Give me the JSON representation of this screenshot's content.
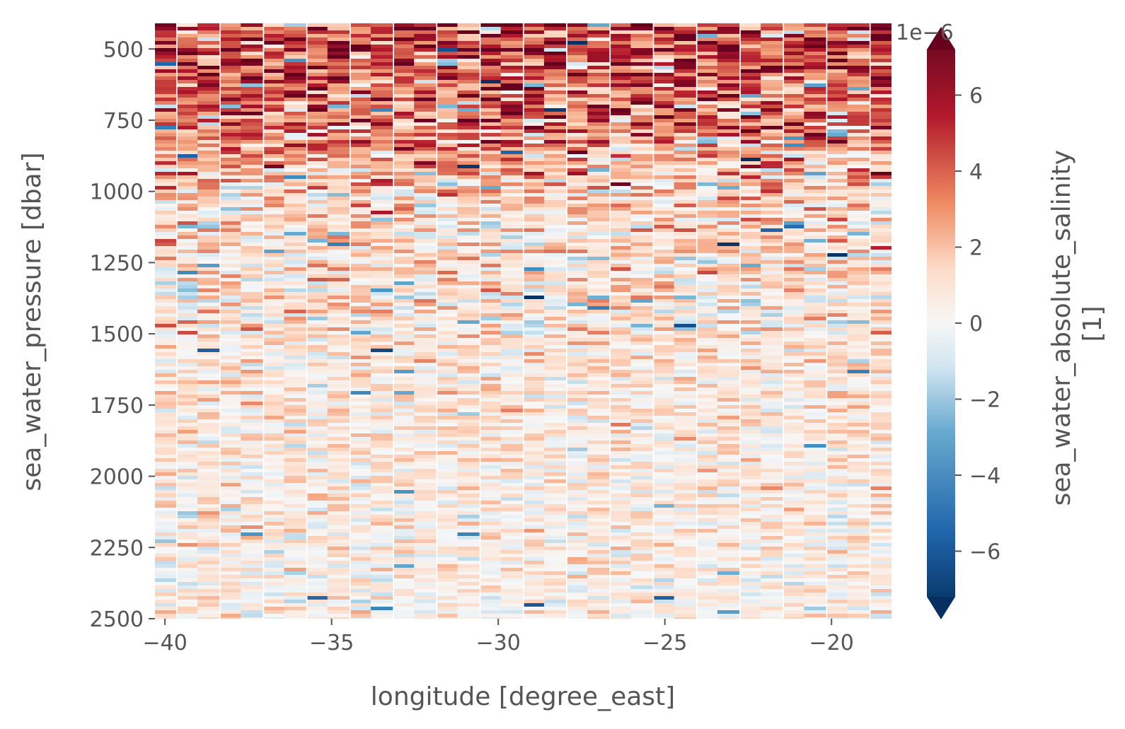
{
  "chart_data": {
    "type": "heatmap",
    "title": "",
    "xlabel": "longitude [degree_east]",
    "ylabel": "sea_water_pressure [dbar]",
    "xlim": [
      -40.3,
      -18.2
    ],
    "ylim": [
      2500,
      410
    ],
    "y_inverted": true,
    "x_ticks": [
      -40,
      -35,
      -30,
      -25,
      -20
    ],
    "x_tick_labels": [
      "−40",
      "−35",
      "−30",
      "−25",
      "−20"
    ],
    "y_ticks": [
      500,
      750,
      1000,
      1250,
      1500,
      1750,
      2000,
      2250,
      2500
    ],
    "y_tick_labels": [
      "500",
      "750",
      "1000",
      "1250",
      "1500",
      "1750",
      "2000",
      "2250",
      "2500"
    ],
    "grid": false,
    "colormap": "RdBu_r",
    "colorbar": {
      "label_line1": "sea_water_absolute_salinity",
      "label_line2": "[1]",
      "offset_text": "1e−6",
      "vmin": -7.2,
      "vmax": 7.2,
      "extend": "both",
      "ticks": [
        -6,
        -4,
        -2,
        0,
        2,
        4,
        6
      ],
      "tick_labels": [
        "−6",
        "−4",
        "−2",
        "0",
        "2",
        "4",
        "6"
      ]
    },
    "profile_longitudes": [
      -40.0,
      -39.3,
      -38.7,
      -38.0,
      -37.4,
      -36.7,
      -36.1,
      -35.4,
      -34.8,
      -34.1,
      -33.5,
      -32.8,
      -32.2,
      -31.5,
      -30.9,
      -30.2,
      -29.6,
      -28.9,
      -28.3,
      -27.6,
      -27.0,
      -26.3,
      -25.7,
      -25.0,
      -24.4,
      -23.7,
      -23.1,
      -22.4,
      -21.8,
      -21.1,
      -20.5,
      -19.8,
      -19.2,
      -18.5
    ],
    "mean_anomaly_by_pressure": {
      "pressure": [
        410,
        500,
        600,
        700,
        800,
        900,
        1000,
        1100,
        1250,
        1500,
        1750,
        2000,
        2250,
        2500
      ],
      "value": [
        5.0,
        4.8,
        4.5,
        4.0,
        3.3,
        2.5,
        1.6,
        1.3,
        1.1,
        0.9,
        0.8,
        0.6,
        0.5,
        0.4
      ]
    }
  },
  "colors": {
    "axis_text": "#555555",
    "tick": "#555555",
    "background": "#ffffff"
  }
}
